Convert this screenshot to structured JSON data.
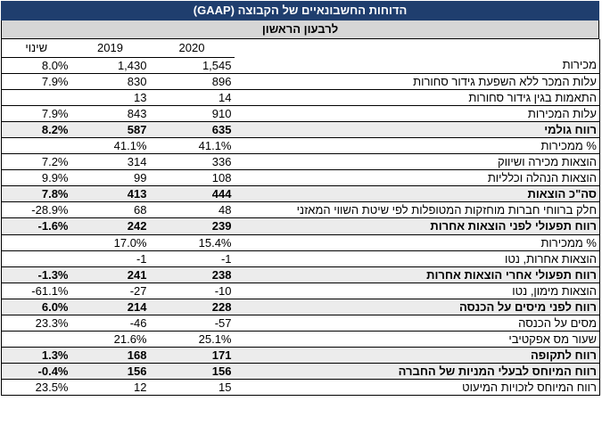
{
  "title": "הדוחות החשבונאיים של הקבוצה (GAAP)",
  "subtitle": "לרבעון הראשון",
  "headers": {
    "change": "שינוי",
    "y2019": "2019",
    "y2020": "2020"
  },
  "rows": [
    {
      "change": "8.0%",
      "y2019": "1,430",
      "y2020": "1,545",
      "label": "מכירות",
      "bold": false
    },
    {
      "change": "7.9%",
      "y2019": "830",
      "y2020": "896",
      "label": "עלות המכר ללא השפעת גידור סחורות",
      "bold": false
    },
    {
      "change": "",
      "y2019": "13",
      "y2020": "14",
      "label": "התאמות בגין גידור סחורות",
      "bold": false
    },
    {
      "change": "7.9%",
      "y2019": "843",
      "y2020": "910",
      "label": "עלות המכירות",
      "bold": false
    },
    {
      "change": "8.2%",
      "y2019": "587",
      "y2020": "635",
      "label": "רווח גולמי",
      "bold": true
    },
    {
      "change": "",
      "y2019": "41.1%",
      "y2020": "41.1%",
      "label": "% ממכירות",
      "bold": false
    },
    {
      "change": "7.2%",
      "y2019": "314",
      "y2020": "336",
      "label": "הוצאות מכירה ושיווק",
      "bold": false
    },
    {
      "change": "9.9%",
      "y2019": "99",
      "y2020": "108",
      "label": "הוצאות הנהלה וכלליות",
      "bold": false
    },
    {
      "change": "7.8%",
      "y2019": "413",
      "y2020": "444",
      "label": "סה\"כ הוצאות",
      "bold": true
    },
    {
      "change": "-28.9%",
      "y2019": "68",
      "y2020": "48",
      "label": "חלק ברווחי חברות מוחזקות המטופלות לפי שיטת השווי המאזני",
      "bold": false
    },
    {
      "change": "-1.6%",
      "y2019": "242",
      "y2020": "239",
      "label": "רווח תפעולי לפני הוצאות אחרות",
      "bold": true
    },
    {
      "change": "",
      "y2019": "17.0%",
      "y2020": "15.4%",
      "label": "% ממכירות",
      "bold": false
    },
    {
      "change": "",
      "y2019": "-1",
      "y2020": "-1",
      "label": "הוצאות אחרות, נטו",
      "bold": false
    },
    {
      "change": "-1.3%",
      "y2019": "241",
      "y2020": "238",
      "label": "רווח תפעולי אחרי הוצאות אחרות",
      "bold": true
    },
    {
      "change": "-61.1%",
      "y2019": "-27",
      "y2020": "-10",
      "label": "הוצאות מימון, נטו",
      "bold": false
    },
    {
      "change": "6.0%",
      "y2019": "214",
      "y2020": "228",
      "label": "רווח לפני מיסים על הכנסה",
      "bold": true
    },
    {
      "change": "23.3%",
      "y2019": "-46",
      "y2020": "-57",
      "label": "מסים על הכנסה",
      "bold": false
    },
    {
      "change": "",
      "y2019": "21.6%",
      "y2020": "25.1%",
      "label": "שעור מס אפקטיבי",
      "bold": false
    },
    {
      "change": "1.3%",
      "y2019": "168",
      "y2020": "171",
      "label": "רווח לתקופה",
      "bold": true
    },
    {
      "change": "-0.4%",
      "y2019": "156",
      "y2020": "156",
      "label": "רווח המיוחס לבעלי המניות של החברה",
      "bold": true
    },
    {
      "change": "23.5%",
      "y2019": "12",
      "y2020": "15",
      "label": "רווח המיוחס לזכויות המיעוט",
      "bold": false
    }
  ]
}
